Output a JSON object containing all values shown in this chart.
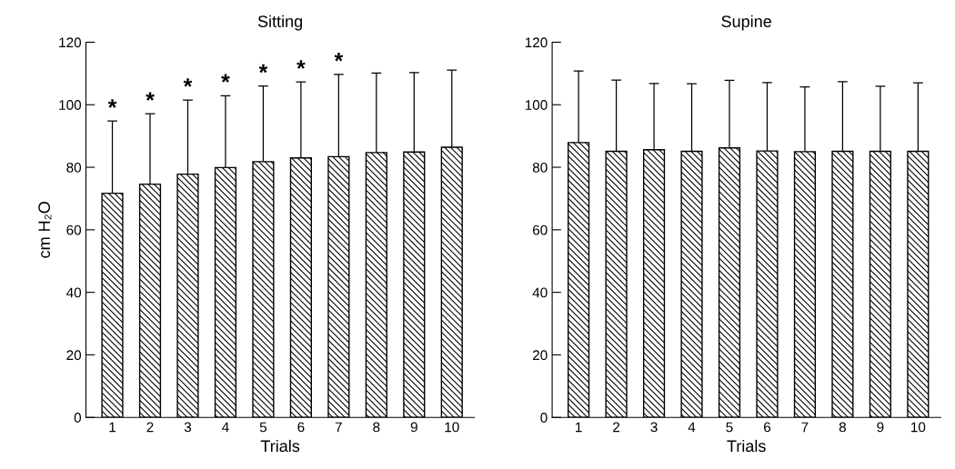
{
  "chart_data": [
    {
      "type": "bar",
      "title": "Sitting",
      "xlabel": "Trials",
      "ylabel": "cm H₂O",
      "categories": [
        "1",
        "2",
        "3",
        "4",
        "5",
        "6",
        "7",
        "8",
        "9",
        "10"
      ],
      "values": [
        71.7,
        74.6,
        77.8,
        79.9,
        81.8,
        83.0,
        83.4,
        84.7,
        84.9,
        86.4
      ],
      "errors": [
        [
          71.7,
          94.8
        ],
        [
          74.6,
          97.1
        ],
        [
          77.8,
          101.5
        ],
        [
          79.9,
          102.9
        ],
        [
          81.8,
          106.0
        ],
        [
          83.0,
          107.3
        ],
        [
          83.4,
          109.7
        ],
        [
          84.7,
          110.1
        ],
        [
          84.9,
          110.3
        ],
        [
          86.4,
          111.1
        ]
      ],
      "color": "#000000",
      "ylim": [
        0,
        120
      ],
      "yticks": [
        0,
        20,
        40,
        60,
        80,
        100,
        120
      ],
      "grid": false,
      "legend": false,
      "annotations": [
        {
          "text": "*",
          "x": "1",
          "y": 94.8
        },
        {
          "text": "*",
          "x": "2",
          "y": 97.1
        },
        {
          "text": "*",
          "x": "3",
          "y": 101.5
        },
        {
          "text": "*",
          "x": "4",
          "y": 102.9
        },
        {
          "text": "*",
          "x": "5",
          "y": 106.0
        },
        {
          "text": "*",
          "x": "6",
          "y": 107.3
        },
        {
          "text": "*",
          "x": "7",
          "y": 109.7
        }
      ]
    },
    {
      "type": "bar",
      "title": "Supine",
      "xlabel": "Trials",
      "categories": [
        "1",
        "2",
        "3",
        "4",
        "5",
        "6",
        "7",
        "8",
        "9",
        "10"
      ],
      "values": [
        87.9,
        85.1,
        85.6,
        85.1,
        86.2,
        85.2,
        85.0,
        85.1,
        85.1,
        85.1
      ],
      "errors": [
        [
          87.9,
          110.8
        ],
        [
          85.1,
          107.9
        ],
        [
          85.6,
          106.8
        ],
        [
          85.1,
          106.7
        ],
        [
          86.2,
          107.8
        ],
        [
          85.2,
          107.1
        ],
        [
          85.0,
          105.7
        ],
        [
          85.1,
          107.4
        ],
        [
          85.1,
          105.9
        ],
        [
          85.1,
          107.0
        ]
      ],
      "color": "#000000",
      "ylim": [
        0,
        120
      ],
      "yticks": [
        0,
        20,
        40,
        60,
        80,
        100,
        120
      ],
      "grid": false,
      "legend": false
    }
  ]
}
